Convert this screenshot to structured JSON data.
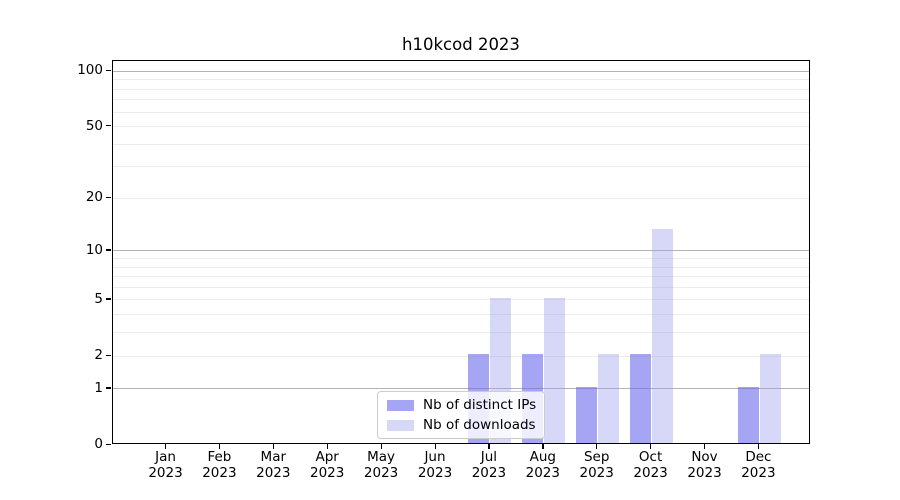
{
  "figure": {
    "title": "h10kcod 2023"
  },
  "chart_data": {
    "type": "bar",
    "title": "h10kcod 2023",
    "categories": [
      "Jan",
      "Feb",
      "Mar",
      "Apr",
      "May",
      "Jun",
      "Jul",
      "Aug",
      "Sep",
      "Oct",
      "Nov",
      "Dec"
    ],
    "x_year_label": "2023",
    "series": [
      {
        "name": "Nb of distinct IPs",
        "color": "#a5a5f3",
        "rgba": "rgba(110,110,235,0.62)",
        "values": [
          0,
          0,
          0,
          0,
          0,
          0,
          2,
          2,
          1,
          2,
          0,
          1
        ]
      },
      {
        "name": "Nb of downloads",
        "color": "#d7d7f7",
        "rgba": "rgba(150,150,235,0.38)",
        "values": [
          0,
          0,
          0,
          0,
          0,
          0,
          5,
          5,
          2,
          13,
          0,
          2
        ]
      }
    ],
    "yscale": "log1p",
    "ylim": [
      0,
      113
    ],
    "yticks_labeled": [
      "0",
      "1",
      "2",
      "5",
      "10",
      "20",
      "50",
      "100"
    ],
    "gridlines_major": [
      1,
      10,
      100
    ],
    "gridlines_minor": [
      2,
      3,
      4,
      5,
      6,
      7,
      8,
      9,
      20,
      30,
      40,
      50,
      60,
      70,
      80,
      90
    ],
    "grid": true,
    "legend_position": "lower center",
    "colors": {
      "axis": "#000000",
      "major_grid": "#b3b3b3",
      "minor_grid": "#ececec",
      "legend_border": "#cccccc",
      "background": "#ffffff"
    }
  }
}
